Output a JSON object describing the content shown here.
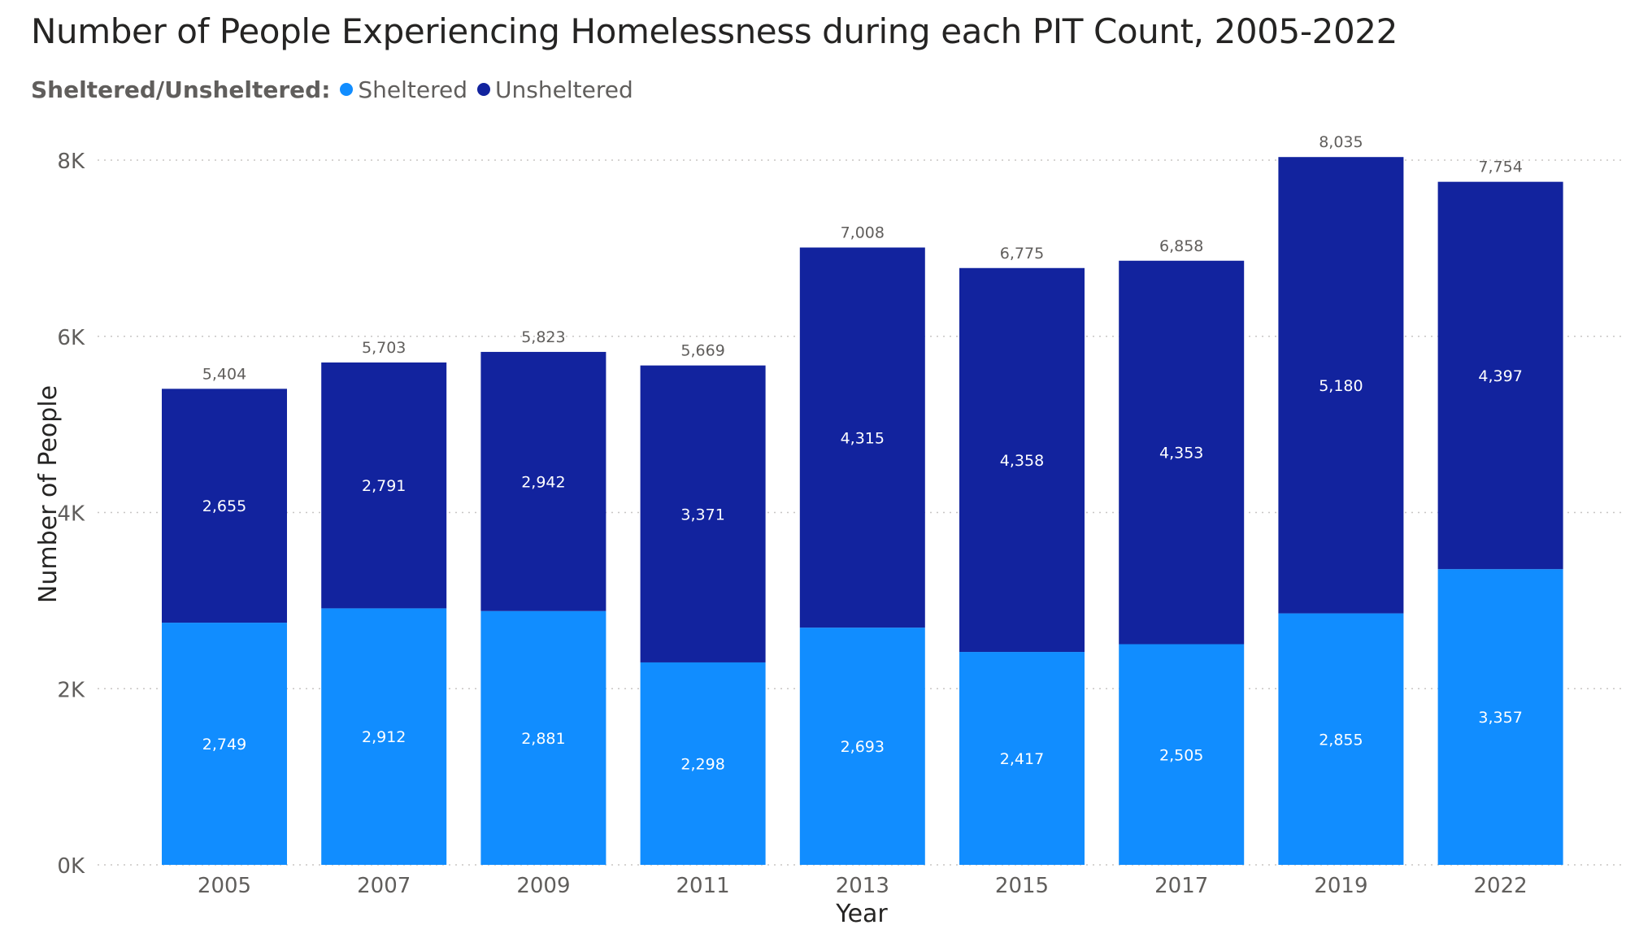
{
  "title": "Number of People Experiencing Homelessness during each PIT Count, 2005-2022",
  "legend": {
    "title": "Sheltered/Unsheltered:",
    "items": [
      {
        "label": "Sheltered",
        "color": "#118dff"
      },
      {
        "label": "Unsheltered",
        "color": "#12239e"
      }
    ]
  },
  "chart_data": {
    "type": "bar",
    "stacked": true,
    "xlabel": "Year",
    "ylabel": "Number of People",
    "ylim": [
      0,
      8000
    ],
    "yticks": [
      0,
      2000,
      4000,
      6000,
      8000
    ],
    "ytick_labels": [
      "0K",
      "2K",
      "4K",
      "6K",
      "8K"
    ],
    "grid": "horizontal dotted",
    "legend_position": "top-left",
    "categories": [
      "2005",
      "2007",
      "2009",
      "2011",
      "2013",
      "2015",
      "2017",
      "2019",
      "2022"
    ],
    "series": [
      {
        "name": "Sheltered",
        "color": "#118dff",
        "values": [
          2749,
          2912,
          2881,
          2298,
          2693,
          2417,
          2505,
          2855,
          3357
        ],
        "labels": [
          "2,749",
          "2,912",
          "2,881",
          "2,298",
          "2,693",
          "2,417",
          "2,505",
          "2,855",
          "3,357"
        ]
      },
      {
        "name": "Unsheltered",
        "color": "#12239e",
        "values": [
          2655,
          2791,
          2942,
          3371,
          4315,
          4358,
          4353,
          5180,
          4397
        ],
        "labels": [
          "2,655",
          "2,791",
          "2,942",
          "3,371",
          "4,315",
          "4,358",
          "4,353",
          "5,180",
          "4,397"
        ]
      }
    ],
    "totals": [
      5404,
      5703,
      5823,
      5669,
      7008,
      6775,
      6858,
      8035,
      7754
    ],
    "total_labels": [
      "5,404",
      "5,703",
      "5,823",
      "5,669",
      "7,008",
      "6,775",
      "6,858",
      "8,035",
      "7,754"
    ]
  }
}
